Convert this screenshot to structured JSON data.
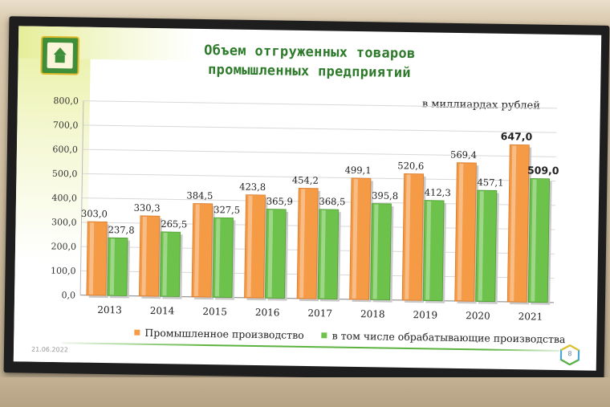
{
  "slide": {
    "title_line1": "Объем отгруженных товаров",
    "title_line2": "промышленных предприятий",
    "unit": "в миллиардах рублей",
    "date": "21.06.2022",
    "page": "8"
  },
  "colors": {
    "orange": "#f59a45",
    "green": "#6cc24a",
    "title": "#2d7a2a"
  },
  "chart_data": {
    "type": "bar",
    "categories": [
      "2013",
      "2014",
      "2015",
      "2016",
      "2017",
      "2018",
      "2019",
      "2020",
      "2021"
    ],
    "series": [
      {
        "name": "Промышленное производство",
        "values": [
          303.0,
          330.3,
          384.5,
          423.8,
          454.2,
          499.1,
          520.6,
          569.4,
          647.0
        ]
      },
      {
        "name": "в том числе обрабатывающие производства",
        "values": [
          237.8,
          265.5,
          327.5,
          365.9,
          368.5,
          395.8,
          412.3,
          457.1,
          509.0
        ]
      }
    ],
    "value_labels": [
      [
        "303,0",
        "330,3",
        "384,5",
        "423,8",
        "454,2",
        "499,1",
        "520,6",
        "569,4",
        "647,0"
      ],
      [
        "237,8",
        "265,5",
        "327,5",
        "365,9",
        "368,5",
        "395,8",
        "412,3",
        "457,1",
        "509,0"
      ]
    ],
    "ylim": [
      0,
      800
    ],
    "yticks": [
      "0,0",
      "100,0",
      "200,0",
      "300,0",
      "400,0",
      "500,0",
      "600,0",
      "700,0",
      "800,0"
    ],
    "grid": true,
    "legend": "bottom"
  }
}
